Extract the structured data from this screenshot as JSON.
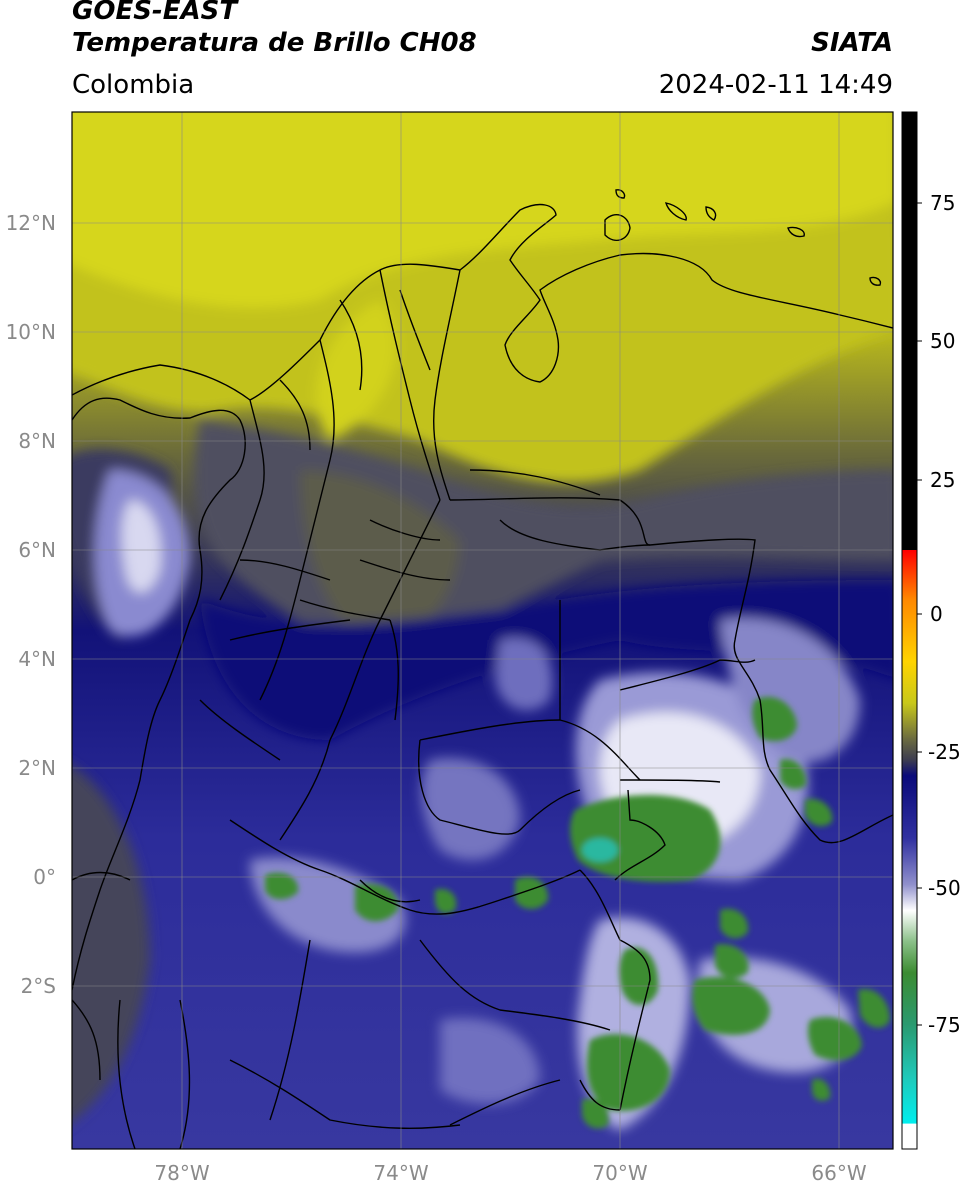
{
  "header": {
    "title_line1": "GOES-EAST",
    "title_line2": "Temperatura de Brillo CH08",
    "organization": "SIATA",
    "region": "Colombia",
    "timestamp": "2024-02-11 14:49"
  },
  "map": {
    "lat_labels": [
      {
        "lat": 12,
        "text": "12°N"
      },
      {
        "lat": 10,
        "text": "10°N"
      },
      {
        "lat": 8,
        "text": "8°N"
      },
      {
        "lat": 6,
        "text": "6°N"
      },
      {
        "lat": 4,
        "text": "4°N"
      },
      {
        "lat": 2,
        "text": "2°N"
      },
      {
        "lat": 0,
        "text": "0°"
      },
      {
        "lat": -2,
        "text": "2°S"
      }
    ],
    "lon_labels": [
      {
        "lon": -78,
        "text": "78°W"
      },
      {
        "lon": -74,
        "text": "74°W"
      },
      {
        "lon": -70,
        "text": "70°W"
      },
      {
        "lon": -66,
        "text": "66°W"
      }
    ],
    "extent": {
      "lon_min": -80,
      "lon_max": -65,
      "lat_min": -5,
      "lat_max": 14
    }
  },
  "colorbar": {
    "tick_labels": [
      {
        "value": 75,
        "text": "75"
      },
      {
        "value": 50,
        "text": "50"
      },
      {
        "value": 25,
        "text": "25"
      },
      {
        "value": 0,
        "text": "0"
      },
      {
        "value": -25,
        "text": "-25"
      },
      {
        "value": -50,
        "text": "-50"
      },
      {
        "value": -75,
        "text": "-75"
      }
    ],
    "range": [
      -90,
      90
    ],
    "colors": {
      "warm_black": "#000000",
      "red": "#ff2a00",
      "orange": "#ff9a00",
      "yellow": "#dcdc1c",
      "olive": "#6e6e30",
      "gray": "#4a4a52",
      "navy": "#141478",
      "blue": "#3a3aa2",
      "lavender": "#b4b4dc",
      "white": "#ffffff",
      "green": "#3c8c32",
      "teal": "#2ad2c0",
      "cyan": "#00e6e6"
    }
  }
}
